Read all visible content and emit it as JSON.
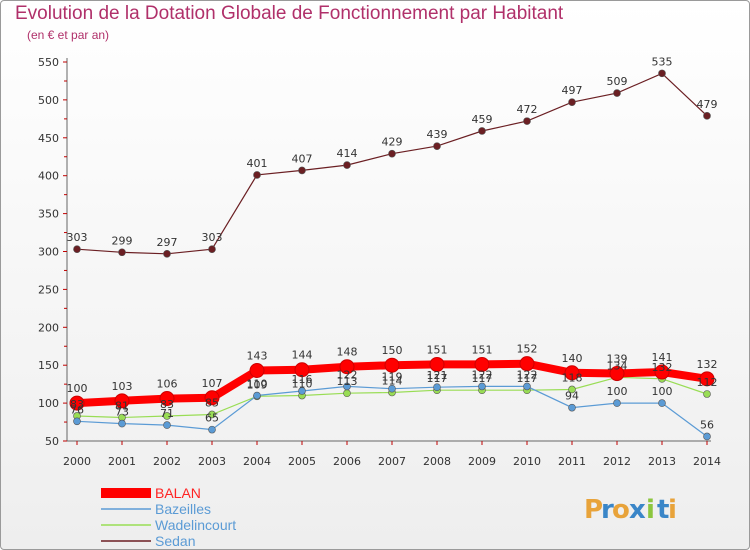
{
  "header": {
    "title": "Evolution de la Dotation Globale de Fonctionnement par Habitant",
    "subtitle": "(en € et par an)"
  },
  "brand": {
    "letters": [
      "P",
      "r",
      "o",
      "x",
      "i",
      "t",
      "i"
    ],
    "colors": [
      "#e8a33a",
      "#3a86c8",
      "#e8a33a",
      "#3a86c8",
      "#8cc63f",
      "#3a86c8",
      "#e8a33a"
    ]
  },
  "chart_data": {
    "type": "line",
    "title": "Evolution de la Dotation Globale de Fonctionnement par Habitant",
    "subtitle": "(en € et par an)",
    "xlabel": "",
    "ylabel": "",
    "x": [
      "2000",
      "2001",
      "2002",
      "2003",
      "2004",
      "2005",
      "2006",
      "2007",
      "2008",
      "2009",
      "2010",
      "2011",
      "2012",
      "2013",
      "2014"
    ],
    "ylim": [
      50,
      550
    ],
    "yticks": [
      50,
      100,
      150,
      200,
      250,
      300,
      350,
      400,
      450,
      500,
      550
    ],
    "grid": false,
    "legend_position": "bottom-left",
    "series": [
      {
        "name": "Sedan",
        "color": "#6b1f23",
        "values": [
          303,
          299,
          297,
          303,
          401,
          407,
          414,
          429,
          439,
          459,
          472,
          497,
          509,
          535,
          479
        ]
      },
      {
        "name": "Wadelincourt",
        "color": "#99dd55",
        "values": [
          83,
          81,
          83,
          85,
          109,
          110,
          113,
          114,
          117,
          117,
          117,
          118,
          134,
          132,
          112
        ]
      },
      {
        "name": "Bazeilles",
        "color": "#5b9bd5",
        "values": [
          76,
          73,
          71,
          65,
          110,
          116,
          122,
          119,
          121,
          122,
          122,
          94,
          100,
          100,
          56
        ]
      },
      {
        "name": "BALAN",
        "color": "#ff0000",
        "values": [
          100,
          103,
          106,
          107,
          143,
          144,
          148,
          150,
          151,
          151,
          152,
          140,
          139,
          141,
          132
        ]
      }
    ],
    "legend_order": [
      "BALAN",
      "Bazeilles",
      "Wadelincourt",
      "Sedan"
    ]
  }
}
